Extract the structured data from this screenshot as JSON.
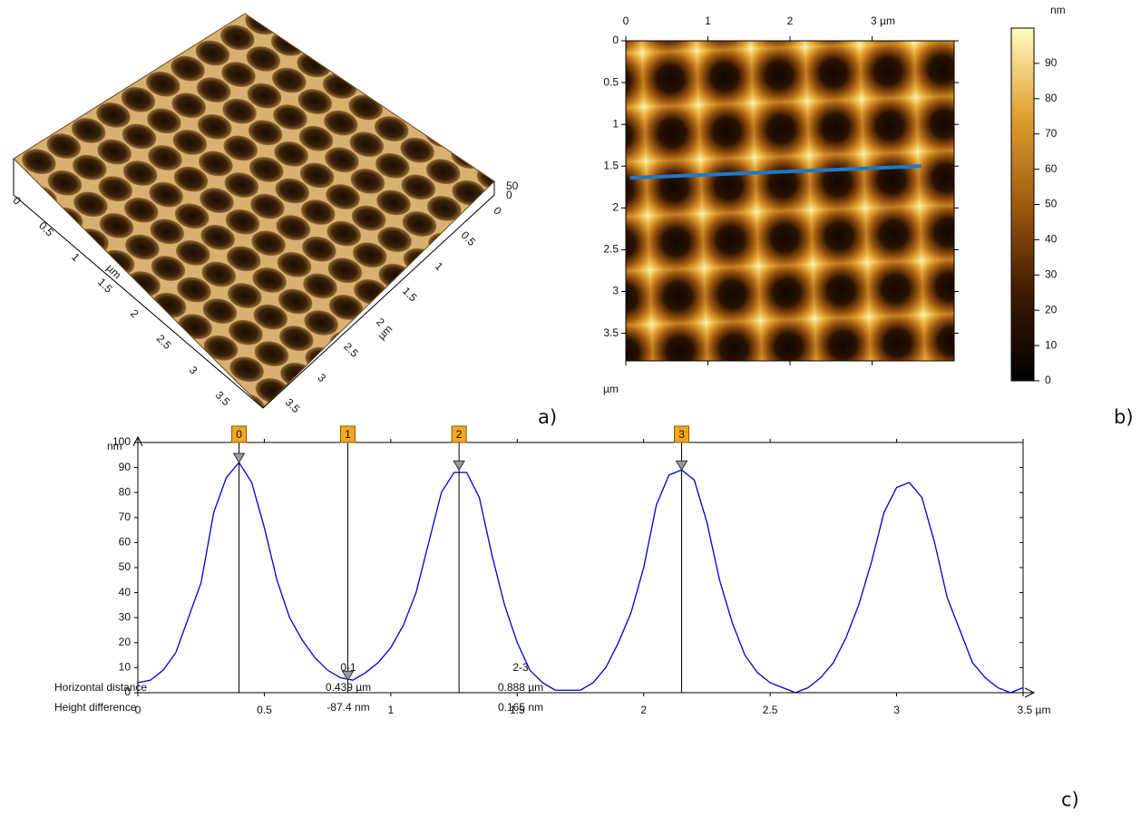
{
  "chart_data": [
    {
      "type": "surface3d",
      "xlim": [
        0,
        3.5
      ],
      "xticks": [
        0,
        0.5,
        1,
        1.5,
        2,
        2.5,
        3,
        3.5
      ],
      "xlabel": "µm",
      "ylim": [
        0,
        3.5
      ],
      "yticks": [
        0,
        0.5,
        1,
        1.5,
        2,
        2.5,
        3,
        3.5
      ],
      "ylabel": "µm",
      "zticks": [
        0,
        50
      ]
    },
    {
      "type": "heatmap",
      "xlim": [
        0,
        4
      ],
      "xticks": [
        0,
        1,
        2,
        {
          "value": 3,
          "label": "3 µm"
        }
      ],
      "ylim": [
        0,
        3.83
      ],
      "yticks": [
        0,
        0.5,
        1,
        1.5,
        2,
        2.5,
        3,
        3.5
      ],
      "ylabel": "µm",
      "colorbar": {
        "label": "nm",
        "lim": [
          0,
          100
        ],
        "ticks": [
          0,
          10,
          20,
          30,
          40,
          50,
          60,
          70,
          80,
          90
        ]
      },
      "profile_line": {
        "x": [
          0.05,
          3.6
        ],
        "y": [
          1.64,
          1.5
        ],
        "color": "#1f78c8"
      }
    },
    {
      "type": "line",
      "x": [
        0,
        0.05,
        0.1,
        0.15,
        0.2,
        0.25,
        0.3,
        0.35,
        0.4,
        0.45,
        0.5,
        0.55,
        0.6,
        0.65,
        0.7,
        0.75,
        0.8,
        0.85,
        0.9,
        0.95,
        1,
        1.05,
        1.1,
        1.15,
        1.2,
        1.25,
        1.3,
        1.35,
        1.4,
        1.45,
        1.5,
        1.55,
        1.6,
        1.65,
        1.7,
        1.75,
        1.8,
        1.85,
        1.9,
        1.95,
        2,
        2.05,
        2.1,
        2.15,
        2.2,
        2.25,
        2.3,
        2.35,
        2.4,
        2.45,
        2.5,
        2.55,
        2.6,
        2.65,
        2.7,
        2.75,
        2.8,
        2.85,
        2.9,
        2.95,
        3,
        3.05,
        3.1,
        3.15,
        3.2,
        3.25,
        3.3,
        3.35,
        3.4,
        3.45,
        3.5
      ],
      "series": [
        {
          "color": "#0000cc",
          "values": [
            4,
            5,
            9,
            16,
            30,
            44,
            72,
            86,
            92,
            84,
            66,
            45,
            30,
            21,
            14,
            9,
            6,
            5,
            8,
            12,
            18,
            27,
            40,
            60,
            80,
            88,
            88,
            78,
            55,
            35,
            20,
            9,
            4,
            1,
            1,
            1,
            4,
            10,
            20,
            32,
            50,
            75,
            87,
            89,
            85,
            68,
            45,
            28,
            15,
            8,
            4,
            2,
            0,
            2,
            6,
            12,
            22,
            35,
            52,
            72,
            82,
            84,
            78,
            60,
            38,
            25,
            12,
            6,
            2,
            0,
            2
          ]
        }
      ],
      "xlim": [
        0,
        3.5
      ],
      "xticks": [
        0,
        0.5,
        1,
        1.5,
        2,
        2.5,
        3,
        {
          "value": 3.5,
          "label": "3.5 µm"
        }
      ],
      "ylim": [
        0,
        100
      ],
      "yticks": [
        0,
        10,
        20,
        30,
        40,
        50,
        60,
        70,
        80,
        90,
        100
      ],
      "ylabel": "nm",
      "cursors": [
        {
          "label": "0",
          "x": 0.4,
          "y": 92
        },
        {
          "label": "1",
          "x": 0.83,
          "y": 5
        },
        {
          "label": "2",
          "x": 1.27,
          "y": 89
        },
        {
          "label": "3",
          "x": 2.15,
          "y": 89
        }
      ]
    }
  ],
  "table": {
    "columns": [
      "0-1",
      "2-3"
    ],
    "rows": [
      [
        "Horizontal distance",
        "0.439 µm",
        "0.888 µm"
      ],
      [
        "Height difference",
        "-87.4 nm",
        "0.165 nm"
      ]
    ]
  },
  "panel_labels": [
    "a)",
    "b)",
    "c)"
  ]
}
